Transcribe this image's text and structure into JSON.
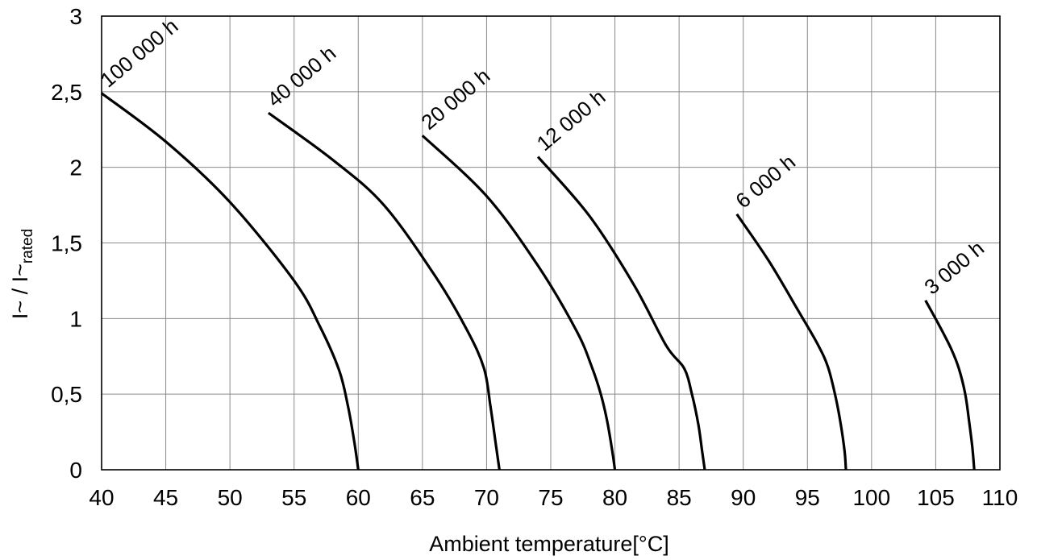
{
  "chart_data": {
    "type": "line",
    "title": "",
    "xlabel": "Ambient temperature[°C]",
    "ylabel_main": "I~ / I~",
    "ylabel_sub": "rated",
    "xlim": [
      40,
      110
    ],
    "ylim": [
      0,
      3
    ],
    "x_ticks": [
      "40",
      "45",
      "50",
      "55",
      "60",
      "65",
      "70",
      "75",
      "80",
      "85",
      "90",
      "95",
      "100",
      "105",
      "110"
    ],
    "y_ticks": [
      "0",
      "0,5",
      "1",
      "1,5",
      "2",
      "2,5",
      "3"
    ],
    "grid": true,
    "series": [
      {
        "name": "100 000 h",
        "x": [
          40,
          45,
          50,
          55,
          57,
          58.5,
          59.2,
          59.7,
          60
        ],
        "y": [
          2.49,
          2.17,
          1.77,
          1.25,
          0.95,
          0.66,
          0.42,
          0.18,
          0
        ]
      },
      {
        "name": "40 000 h",
        "x": [
          53,
          58,
          62,
          66,
          68.5,
          69.8,
          70.3,
          70.7,
          71
        ],
        "y": [
          2.36,
          2.05,
          1.75,
          1.28,
          0.92,
          0.67,
          0.42,
          0.18,
          0
        ]
      },
      {
        "name": "20 000 h",
        "x": [
          65,
          70,
          74,
          77,
          78.2,
          78.9,
          79.4,
          79.8,
          80
        ],
        "y": [
          2.21,
          1.81,
          1.35,
          0.92,
          0.68,
          0.5,
          0.32,
          0.12,
          0
        ]
      },
      {
        "name": "12 000 h",
        "x": [
          74,
          78,
          81.5,
          84,
          85.4,
          86,
          86.5,
          86.8,
          87
        ],
        "y": [
          2.07,
          1.68,
          1.22,
          0.82,
          0.67,
          0.5,
          0.3,
          0.12,
          0
        ]
      },
      {
        "name": "6 000 h",
        "x": [
          89.5,
          92,
          94.3,
          95.8,
          96.6,
          97.2,
          97.6,
          97.9,
          98
        ],
        "y": [
          1.69,
          1.38,
          1.05,
          0.83,
          0.68,
          0.48,
          0.3,
          0.12,
          0
        ]
      },
      {
        "name": "3 000 h",
        "x": [
          104.2,
          105.3,
          106.2,
          106.8,
          107.3,
          107.6,
          107.85,
          108
        ],
        "y": [
          1.12,
          0.95,
          0.8,
          0.67,
          0.5,
          0.32,
          0.15,
          0
        ]
      }
    ]
  }
}
